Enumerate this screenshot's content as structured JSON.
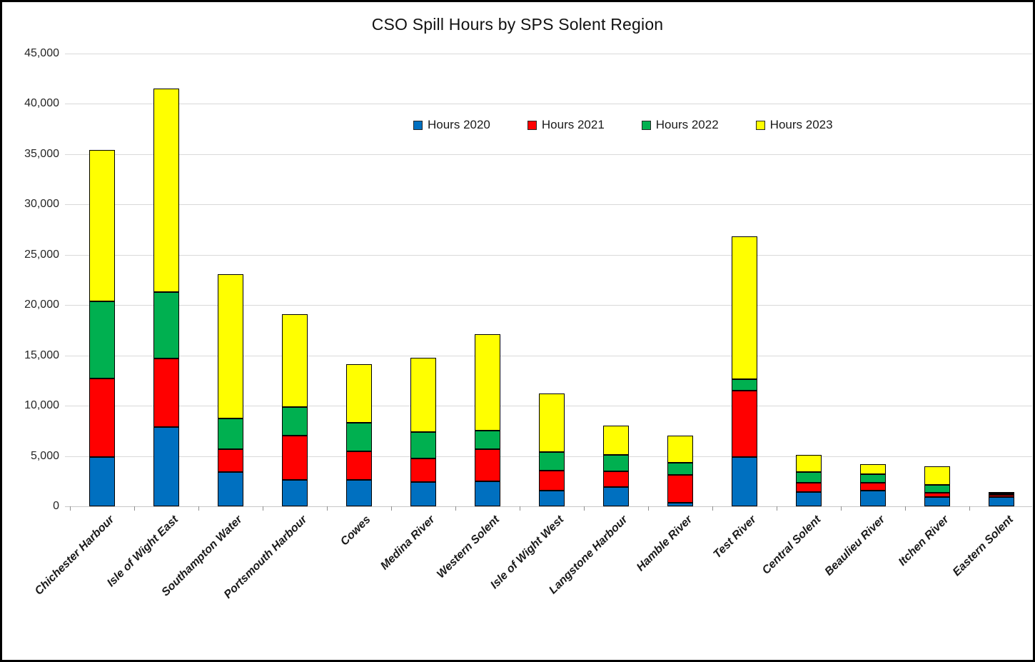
{
  "title": "CSO Spill Hours by SPS Solent Region",
  "y_axis": {
    "tick_labels": [
      "0",
      "5,000",
      "10,000",
      "15,000",
      "20,000",
      "25,000",
      "30,000",
      "35,000",
      "40,000",
      "45,000"
    ]
  },
  "legend": {
    "items": [
      {
        "label": "Hours 2020",
        "color": "#0070C0"
      },
      {
        "label": "Hours 2021",
        "color": "#FF0000"
      },
      {
        "label": "Hours 2022",
        "color": "#00B050"
      },
      {
        "label": "Hours 2023",
        "color": "#FFFF00"
      }
    ]
  },
  "chart_data": {
    "type": "bar",
    "stacked": true,
    "title": "CSO Spill Hours by SPS Solent Region",
    "xlabel": "",
    "ylabel": "",
    "ylim": [
      0,
      45000
    ],
    "y_tick_step": 5000,
    "grid": true,
    "legend_position": "top-center-inside",
    "categories": [
      "Chichester Harbour",
      "Isle of Wight East",
      "Southampton Water",
      "Portsmouth Harbour",
      "Cowes",
      "Medina River",
      "Western Solent",
      "Isle of Wight West",
      "Langstone Harbour",
      "Hamble River",
      "Test River",
      "Central Solent",
      "Beaulieu River",
      "Itchen River",
      "Eastern Solent"
    ],
    "series": [
      {
        "name": "Hours 2020",
        "color": "#0070C0",
        "values": [
          4900,
          7900,
          3400,
          2650,
          2600,
          2400,
          2450,
          1550,
          1900,
          350,
          4900,
          1450,
          1550,
          950,
          900
        ]
      },
      {
        "name": "Hours 2021",
        "color": "#FF0000",
        "values": [
          7800,
          6800,
          2300,
          4350,
          2850,
          2350,
          3200,
          2000,
          1550,
          2750,
          6600,
          900,
          800,
          400,
          250
        ]
      },
      {
        "name": "Hours 2022",
        "color": "#00B050",
        "values": [
          7700,
          6600,
          3000,
          2900,
          2850,
          2600,
          1900,
          1850,
          1650,
          1200,
          1150,
          1050,
          850,
          750,
          150
        ]
      },
      {
        "name": "Hours 2023",
        "color": "#FFFF00",
        "values": [
          15000,
          20200,
          14400,
          9200,
          5800,
          7450,
          9550,
          5800,
          2950,
          2750,
          14150,
          1700,
          1000,
          1850,
          100
        ]
      }
    ],
    "totals": [
      35400,
      41500,
      23100,
      19100,
      14100,
      14800,
      17100,
      11200,
      8050,
      7050,
      26800,
      5100,
      4200,
      3950,
      1400
    ]
  }
}
